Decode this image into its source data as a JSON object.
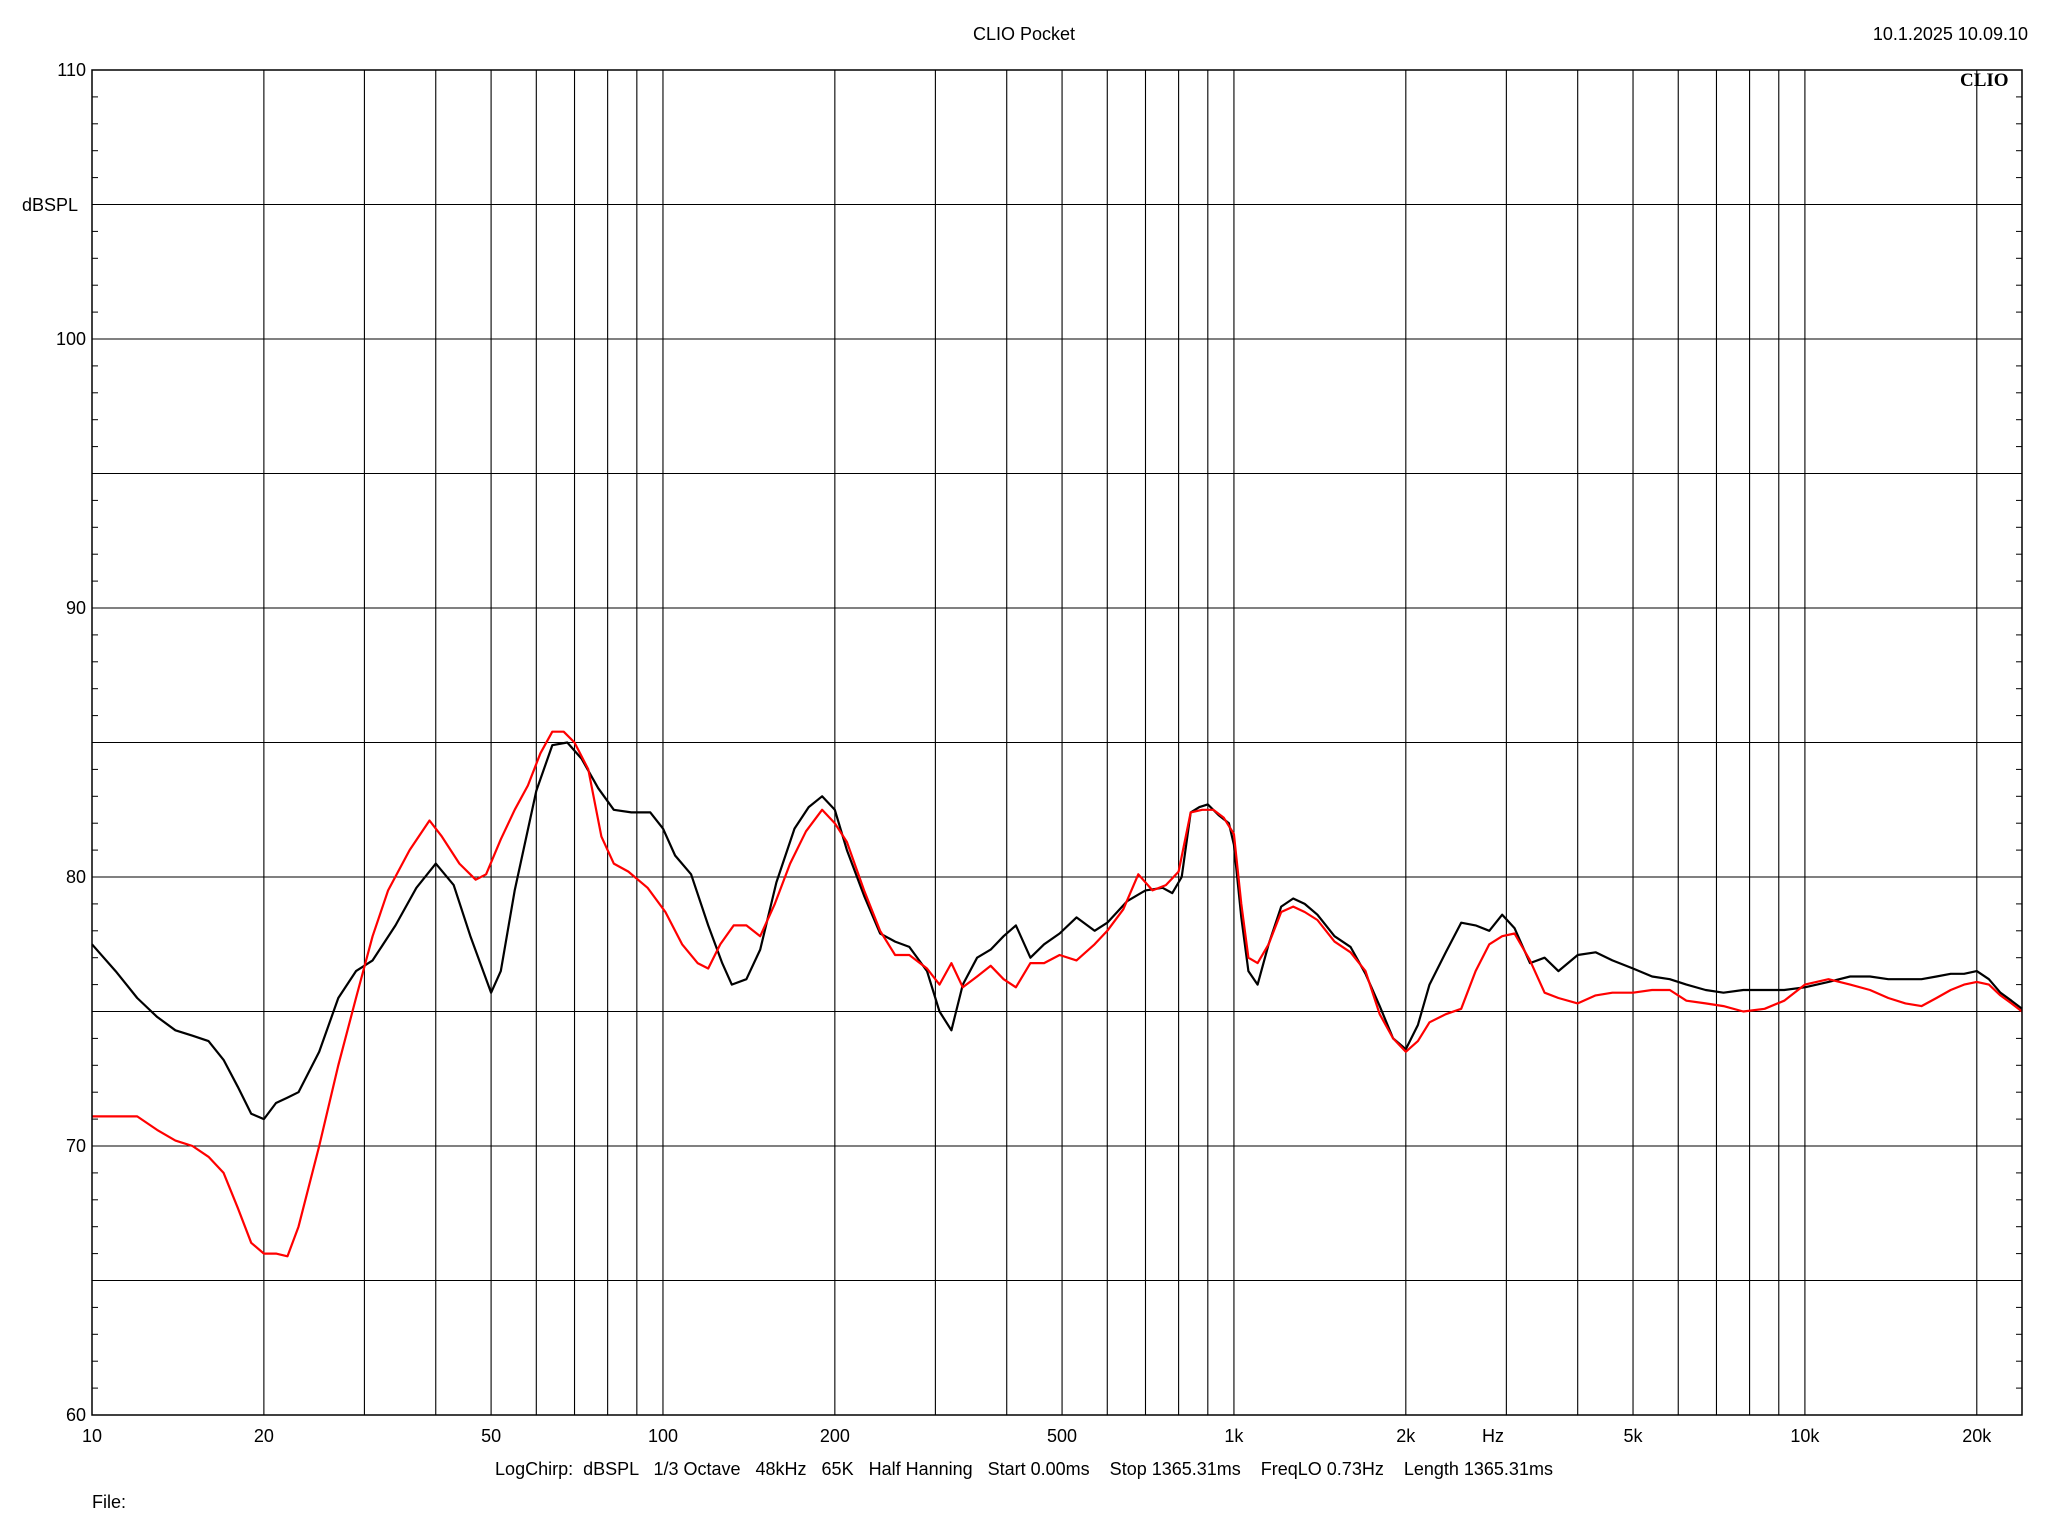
{
  "header": {
    "title": "CLIO Pocket",
    "datetime": "10.1.2025 10.09.10",
    "brand": "CLIO"
  },
  "footer": {
    "settings": "LogChirp:  dBSPL   1/3 Octave   48kHz   65K   Half Hanning   Start 0.00ms    Stop 1365.31ms    FreqLO 0.73Hz    Length 1365.31ms",
    "file": "File:"
  },
  "colors": {
    "background": "#ffffff",
    "grid": "#000000",
    "series_black": "#000000",
    "series_red": "#ff0000"
  },
  "chart_data": {
    "type": "line",
    "title": "CLIO Pocket",
    "ylabel": "dBSPL",
    "xlabel_unit": "Hz",
    "xscale": "log",
    "xlim": [
      10,
      24000
    ],
    "ylim": [
      60,
      110
    ],
    "grid": true,
    "y_ticks": [
      {
        "value": 60,
        "label": "60"
      },
      {
        "value": 70,
        "label": "70"
      },
      {
        "value": 80,
        "label": "80"
      },
      {
        "value": 90,
        "label": "90"
      },
      {
        "value": 100,
        "label": "100"
      },
      {
        "value": 110,
        "label": "110"
      }
    ],
    "x_ticks": [
      {
        "value": 10,
        "label": "10"
      },
      {
        "value": 20,
        "label": "20"
      },
      {
        "value": 50,
        "label": "50"
      },
      {
        "value": 100,
        "label": "100"
      },
      {
        "value": 200,
        "label": "200"
      },
      {
        "value": 500,
        "label": "500"
      },
      {
        "value": 1000,
        "label": "1k"
      },
      {
        "value": 2000,
        "label": "2k"
      },
      {
        "value": 5000,
        "label": "5k"
      },
      {
        "value": 10000,
        "label": "10k"
      },
      {
        "value": 20000,
        "label": "20k"
      }
    ],
    "series": [
      {
        "color": "#000000",
        "points": [
          [
            10,
            77.5
          ],
          [
            11,
            76.5
          ],
          [
            12,
            75.5
          ],
          [
            13,
            74.8
          ],
          [
            14,
            74.3
          ],
          [
            15,
            74.1
          ],
          [
            16,
            73.9
          ],
          [
            17,
            73.2
          ],
          [
            18,
            72.2
          ],
          [
            19,
            71.2
          ],
          [
            20,
            71.0
          ],
          [
            21,
            71.6
          ],
          [
            22,
            71.8
          ],
          [
            23,
            72.0
          ],
          [
            25,
            73.5
          ],
          [
            27,
            75.5
          ],
          [
            29,
            76.5
          ],
          [
            31,
            76.9
          ],
          [
            34,
            78.2
          ],
          [
            37,
            79.6
          ],
          [
            40,
            80.5
          ],
          [
            43,
            79.7
          ],
          [
            46,
            77.8
          ],
          [
            50,
            75.7
          ],
          [
            52,
            76.5
          ],
          [
            55,
            79.5
          ],
          [
            60,
            83.2
          ],
          [
            64,
            84.9
          ],
          [
            68,
            85.0
          ],
          [
            72,
            84.4
          ],
          [
            77,
            83.3
          ],
          [
            82,
            82.5
          ],
          [
            88,
            82.4
          ],
          [
            95,
            82.4
          ],
          [
            100,
            81.8
          ],
          [
            105,
            80.8
          ],
          [
            112,
            80.1
          ],
          [
            120,
            78.2
          ],
          [
            127,
            76.8
          ],
          [
            132,
            76.0
          ],
          [
            140,
            76.2
          ],
          [
            148,
            77.3
          ],
          [
            158,
            79.8
          ],
          [
            170,
            81.8
          ],
          [
            180,
            82.6
          ],
          [
            190,
            83.0
          ],
          [
            200,
            82.5
          ],
          [
            210,
            81.0
          ],
          [
            225,
            79.3
          ],
          [
            240,
            77.9
          ],
          [
            255,
            77.6
          ],
          [
            270,
            77.4
          ],
          [
            290,
            76.5
          ],
          [
            305,
            75.0
          ],
          [
            320,
            74.3
          ],
          [
            335,
            76.0
          ],
          [
            355,
            77.0
          ],
          [
            375,
            77.3
          ],
          [
            395,
            77.8
          ],
          [
            415,
            78.2
          ],
          [
            440,
            77.0
          ],
          [
            465,
            77.5
          ],
          [
            495,
            77.9
          ],
          [
            530,
            78.5
          ],
          [
            570,
            78.0
          ],
          [
            600,
            78.3
          ],
          [
            650,
            79.1
          ],
          [
            700,
            79.5
          ],
          [
            750,
            79.6
          ],
          [
            780,
            79.4
          ],
          [
            810,
            80.0
          ],
          [
            840,
            82.4
          ],
          [
            870,
            82.6
          ],
          [
            900,
            82.7
          ],
          [
            940,
            82.3
          ],
          [
            980,
            82.0
          ],
          [
            1000,
            81.2
          ],
          [
            1030,
            78.5
          ],
          [
            1060,
            76.5
          ],
          [
            1100,
            76.0
          ],
          [
            1150,
            77.5
          ],
          [
            1210,
            78.9
          ],
          [
            1270,
            79.2
          ],
          [
            1330,
            79.0
          ],
          [
            1400,
            78.6
          ],
          [
            1500,
            77.8
          ],
          [
            1600,
            77.4
          ],
          [
            1700,
            76.4
          ],
          [
            1800,
            75.2
          ],
          [
            1900,
            74.0
          ],
          [
            2000,
            73.6
          ],
          [
            2100,
            74.5
          ],
          [
            2200,
            76.0
          ],
          [
            2350,
            77.2
          ],
          [
            2500,
            78.3
          ],
          [
            2650,
            78.2
          ],
          [
            2800,
            78.0
          ],
          [
            2950,
            78.6
          ],
          [
            3100,
            78.1
          ],
          [
            3300,
            76.8
          ],
          [
            3500,
            77.0
          ],
          [
            3700,
            76.5
          ],
          [
            4000,
            77.1
          ],
          [
            4300,
            77.2
          ],
          [
            4600,
            76.9
          ],
          [
            5000,
            76.6
          ],
          [
            5400,
            76.3
          ],
          [
            5800,
            76.2
          ],
          [
            6200,
            76.0
          ],
          [
            6700,
            75.8
          ],
          [
            7200,
            75.7
          ],
          [
            7800,
            75.8
          ],
          [
            8500,
            75.8
          ],
          [
            9200,
            75.8
          ],
          [
            10000,
            75.9
          ],
          [
            11000,
            76.1
          ],
          [
            12000,
            76.3
          ],
          [
            13000,
            76.3
          ],
          [
            14000,
            76.2
          ],
          [
            15000,
            76.2
          ],
          [
            16000,
            76.2
          ],
          [
            17000,
            76.3
          ],
          [
            18000,
            76.4
          ],
          [
            19000,
            76.4
          ],
          [
            20000,
            76.5
          ],
          [
            21000,
            76.2
          ],
          [
            22000,
            75.7
          ],
          [
            23000,
            75.4
          ],
          [
            24000,
            75.1
          ]
        ]
      },
      {
        "color": "#ff0000",
        "points": [
          [
            10,
            71.1
          ],
          [
            11,
            71.1
          ],
          [
            12,
            71.1
          ],
          [
            13,
            70.6
          ],
          [
            14,
            70.2
          ],
          [
            15,
            70.0
          ],
          [
            16,
            69.6
          ],
          [
            17,
            69.0
          ],
          [
            18,
            67.7
          ],
          [
            19,
            66.4
          ],
          [
            20,
            66.0
          ],
          [
            21,
            66.0
          ],
          [
            22,
            65.9
          ],
          [
            23,
            67.0
          ],
          [
            25,
            70.0
          ],
          [
            27,
            73.0
          ],
          [
            29,
            75.5
          ],
          [
            31,
            77.8
          ],
          [
            33,
            79.5
          ],
          [
            36,
            81.0
          ],
          [
            39,
            82.1
          ],
          [
            41,
            81.5
          ],
          [
            44,
            80.5
          ],
          [
            47,
            79.9
          ],
          [
            49,
            80.1
          ],
          [
            52,
            81.4
          ],
          [
            55,
            82.5
          ],
          [
            58,
            83.4
          ],
          [
            61,
            84.6
          ],
          [
            64,
            85.4
          ],
          [
            67,
            85.4
          ],
          [
            70,
            85.0
          ],
          [
            74,
            84.0
          ],
          [
            78,
            81.5
          ],
          [
            82,
            80.5
          ],
          [
            87,
            80.2
          ],
          [
            94,
            79.6
          ],
          [
            101,
            78.7
          ],
          [
            108,
            77.5
          ],
          [
            115,
            76.8
          ],
          [
            120,
            76.6
          ],
          [
            126,
            77.5
          ],
          [
            133,
            78.2
          ],
          [
            140,
            78.2
          ],
          [
            148,
            77.8
          ],
          [
            157,
            79.0
          ],
          [
            167,
            80.5
          ],
          [
            178,
            81.7
          ],
          [
            190,
            82.5
          ],
          [
            200,
            82.0
          ],
          [
            210,
            81.3
          ],
          [
            225,
            79.5
          ],
          [
            240,
            78.0
          ],
          [
            255,
            77.1
          ],
          [
            270,
            77.1
          ],
          [
            290,
            76.6
          ],
          [
            305,
            76.0
          ],
          [
            320,
            76.8
          ],
          [
            335,
            75.9
          ],
          [
            355,
            76.3
          ],
          [
            375,
            76.7
          ],
          [
            395,
            76.2
          ],
          [
            415,
            75.9
          ],
          [
            440,
            76.8
          ],
          [
            465,
            76.8
          ],
          [
            495,
            77.1
          ],
          [
            530,
            76.9
          ],
          [
            570,
            77.5
          ],
          [
            600,
            78.0
          ],
          [
            640,
            78.8
          ],
          [
            680,
            80.1
          ],
          [
            720,
            79.5
          ],
          [
            760,
            79.7
          ],
          [
            800,
            80.2
          ],
          [
            840,
            82.4
          ],
          [
            880,
            82.5
          ],
          [
            920,
            82.5
          ],
          [
            960,
            82.2
          ],
          [
            1000,
            81.6
          ],
          [
            1030,
            79.0
          ],
          [
            1060,
            77.0
          ],
          [
            1100,
            76.8
          ],
          [
            1150,
            77.5
          ],
          [
            1210,
            78.7
          ],
          [
            1270,
            78.9
          ],
          [
            1330,
            78.7
          ],
          [
            1400,
            78.4
          ],
          [
            1500,
            77.6
          ],
          [
            1600,
            77.2
          ],
          [
            1700,
            76.5
          ],
          [
            1800,
            74.9
          ],
          [
            1900,
            74.0
          ],
          [
            2000,
            73.5
          ],
          [
            2100,
            73.9
          ],
          [
            2200,
            74.6
          ],
          [
            2350,
            74.9
          ],
          [
            2500,
            75.1
          ],
          [
            2650,
            76.5
          ],
          [
            2800,
            77.5
          ],
          [
            2950,
            77.8
          ],
          [
            3100,
            77.9
          ],
          [
            3300,
            76.9
          ],
          [
            3500,
            75.7
          ],
          [
            3700,
            75.5
          ],
          [
            4000,
            75.3
          ],
          [
            4300,
            75.6
          ],
          [
            4600,
            75.7
          ],
          [
            5000,
            75.7
          ],
          [
            5400,
            75.8
          ],
          [
            5800,
            75.8
          ],
          [
            6200,
            75.4
          ],
          [
            6700,
            75.3
          ],
          [
            7200,
            75.2
          ],
          [
            7800,
            75.0
          ],
          [
            8500,
            75.1
          ],
          [
            9200,
            75.4
          ],
          [
            10000,
            76.0
          ],
          [
            11000,
            76.2
          ],
          [
            12000,
            76.0
          ],
          [
            13000,
            75.8
          ],
          [
            14000,
            75.5
          ],
          [
            15000,
            75.3
          ],
          [
            16000,
            75.2
          ],
          [
            17000,
            75.5
          ],
          [
            18000,
            75.8
          ],
          [
            19000,
            76.0
          ],
          [
            20000,
            76.1
          ],
          [
            21000,
            76.0
          ],
          [
            22000,
            75.6
          ],
          [
            23000,
            75.3
          ],
          [
            24000,
            75.0
          ]
        ]
      }
    ]
  }
}
